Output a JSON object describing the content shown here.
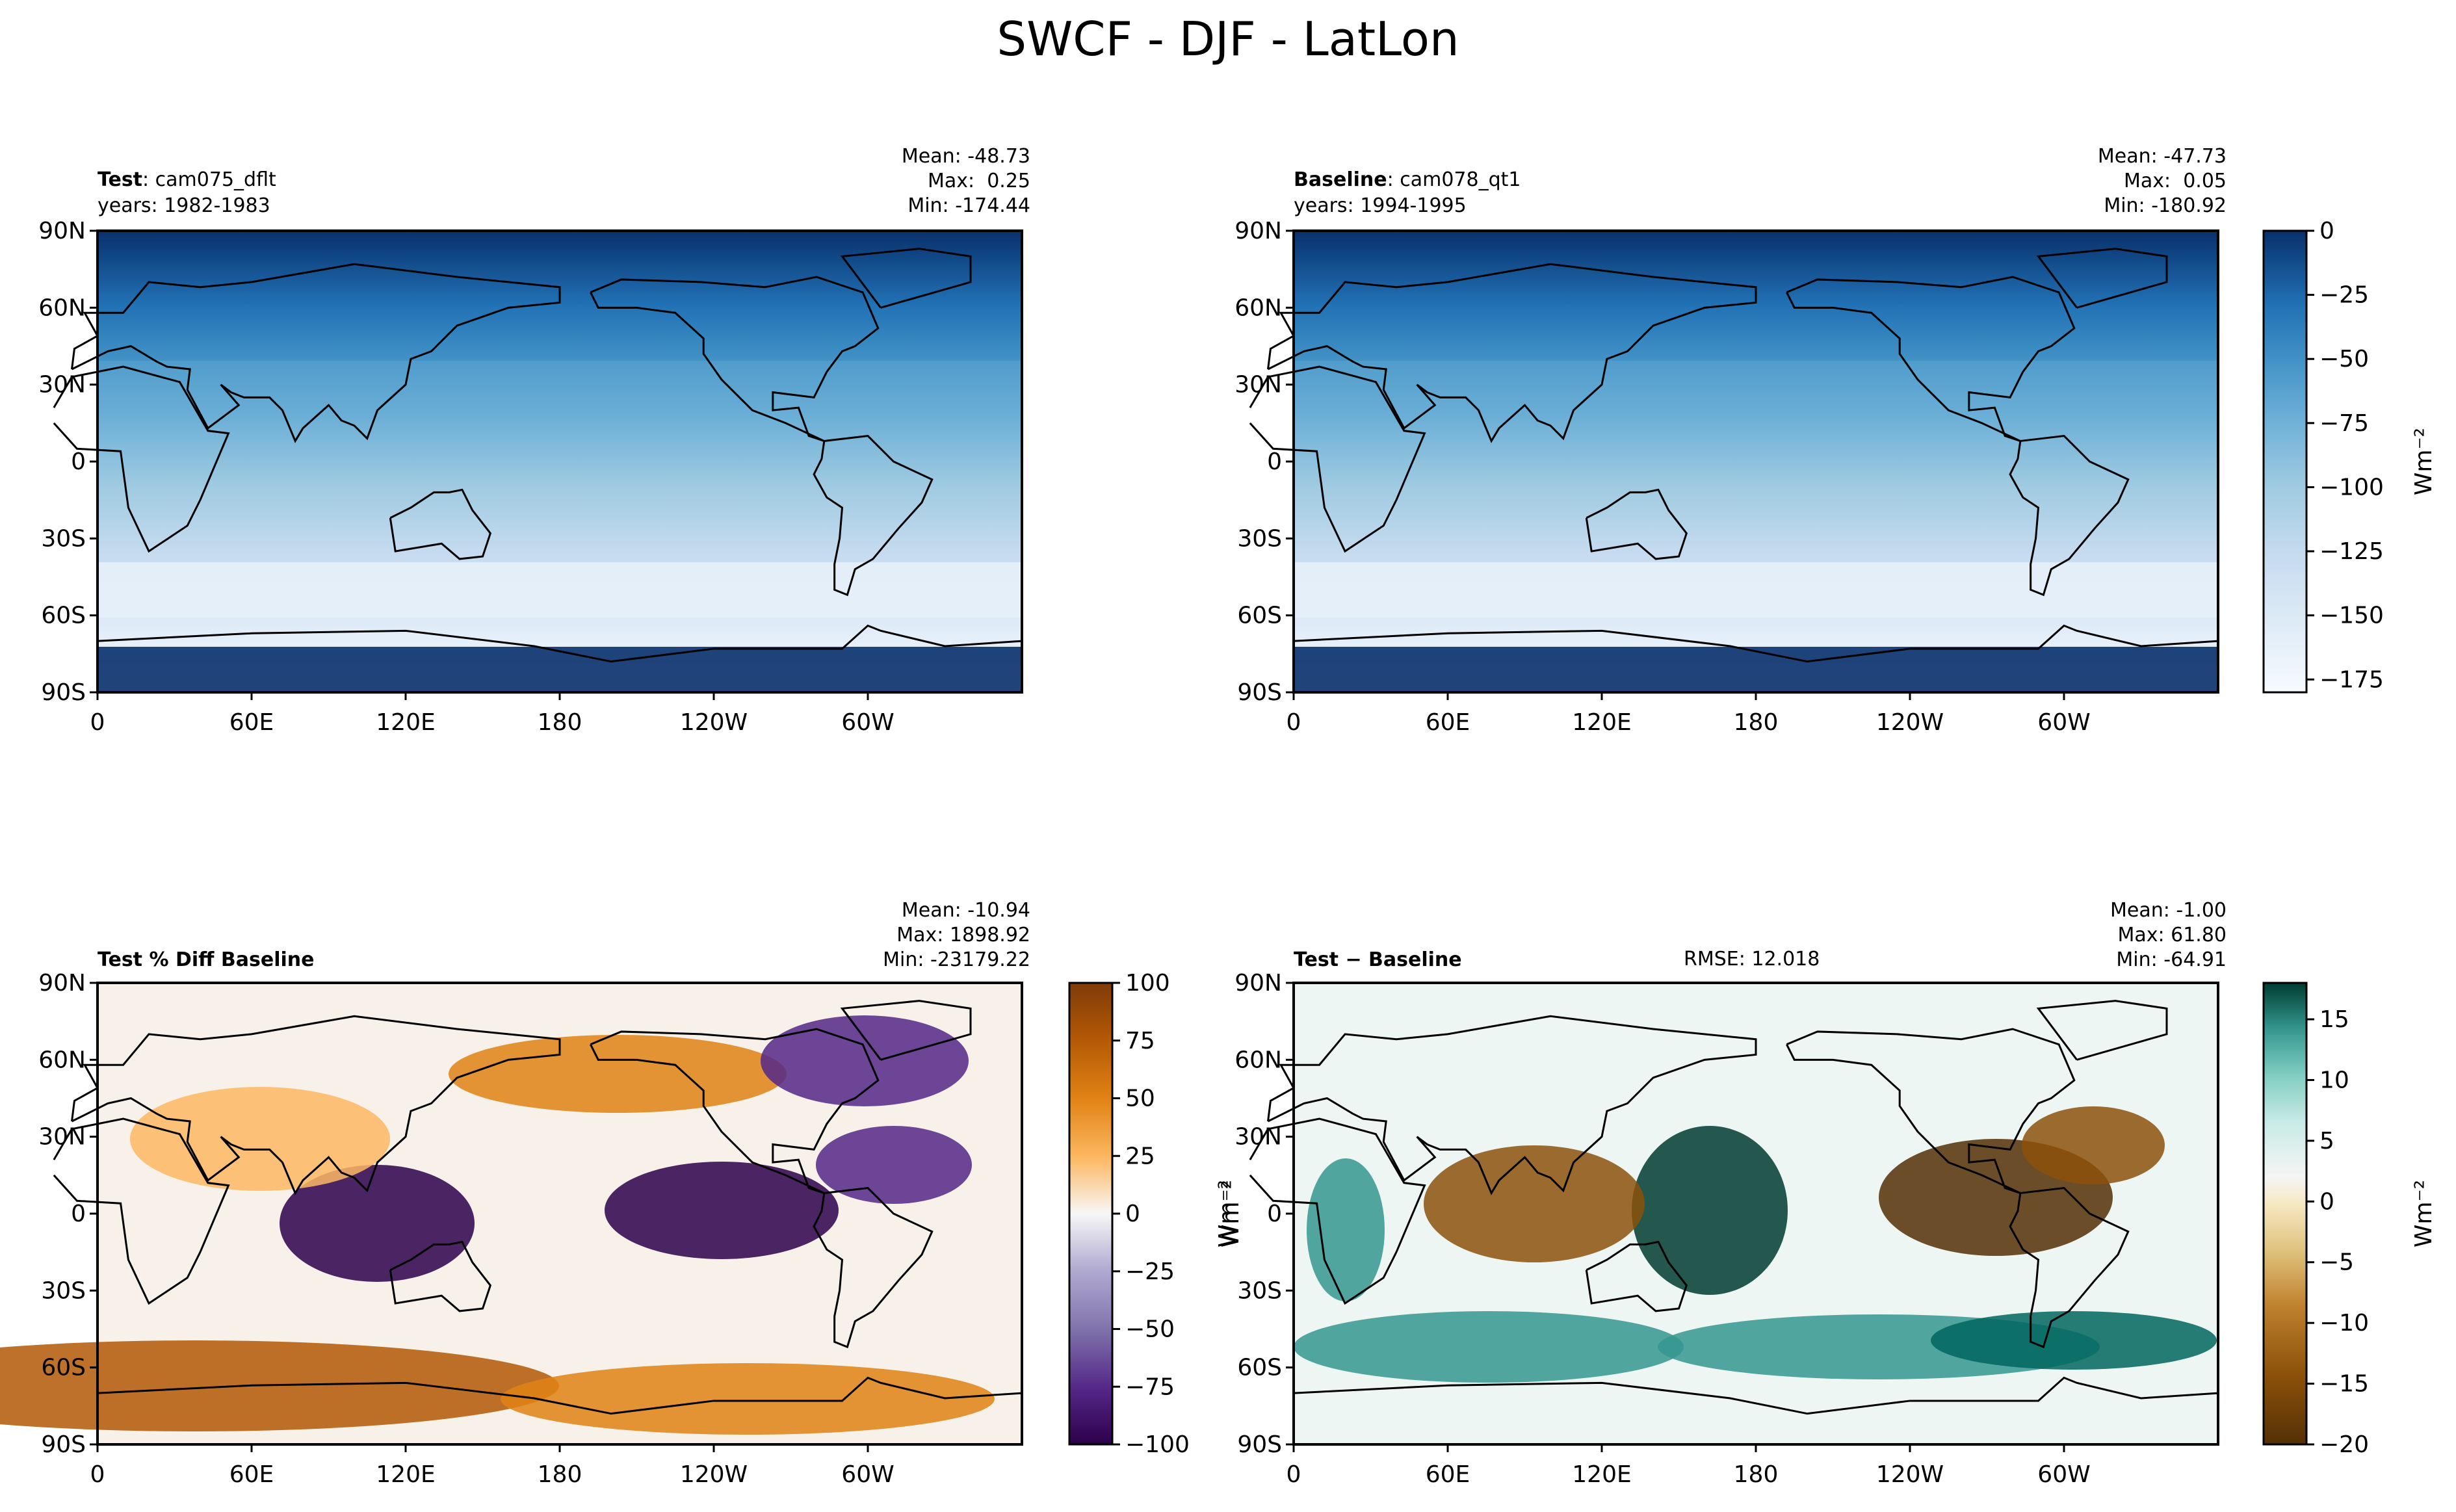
{
  "figure": {
    "title": "SWCF - DJF - LatLon"
  },
  "panels": [
    {
      "key": "test",
      "label_bold": "Test",
      "label_rest": ": cam075_dflt",
      "years": "years: 1982-1983",
      "stats": [
        "Mean: -48.73",
        "Max:  0.25",
        "Min: -174.44"
      ],
      "rmse": ""
    },
    {
      "key": "baseline",
      "label_bold": "Baseline",
      "label_rest": ": cam078_qt1",
      "years": "years: 1994-1995",
      "stats": [
        "Mean: -47.73",
        "Max:  0.05",
        "Min: -180.92"
      ],
      "rmse": ""
    },
    {
      "key": "pctdiff",
      "label_bold": "Test % Diff Baseline",
      "label_rest": "",
      "years": "",
      "stats": [
        "Mean: -10.94",
        "Max: 1898.92",
        "Min: -23179.22"
      ],
      "rmse": ""
    },
    {
      "key": "diff",
      "label_bold": "Test − Baseline",
      "label_rest": "",
      "years": "",
      "stats": [
        "Mean: -1.00",
        "Max: 61.80",
        "Min: -64.91"
      ],
      "rmse": "RMSE: 12.018"
    }
  ],
  "axes": {
    "y_ticks": [
      "90N",
      "60N",
      "30N",
      "0",
      "30S",
      "60S",
      "90S"
    ],
    "x_ticks": [
      "0",
      "60E",
      "120E",
      "180",
      "120W",
      "60W"
    ]
  },
  "colorbars": {
    "abs": {
      "ticks": [
        "0",
        "−25",
        "−50",
        "−75",
        "−100",
        "−125",
        "−150",
        "−175"
      ],
      "range": [
        -180,
        0
      ],
      "label": "Wm⁻²",
      "colormap": "Blues"
    },
    "pct": {
      "ticks": [
        "100",
        "75",
        "50",
        "25",
        "0",
        "−25",
        "−50",
        "−75",
        "−100"
      ],
      "range": [
        -100,
        100
      ],
      "label": "Wm⁻²",
      "colormap": "PuOr"
    },
    "diff": {
      "ticks": [
        "15",
        "10",
        "5",
        "0",
        "−5",
        "−10",
        "−15",
        "−20"
      ],
      "range": [
        -20,
        18
      ],
      "label": "Wm⁻²",
      "colormap": "BrBG"
    }
  },
  "chart_data": [
    {
      "type": "heatmap",
      "title": "Test: cam075_dflt",
      "x_ticks": [
        "0",
        "60E",
        "120E",
        "180",
        "120W",
        "60W"
      ],
      "y_ticks": [
        "90N",
        "60N",
        "30N",
        "0",
        "30S",
        "60S",
        "90S"
      ],
      "value_range": [
        -180,
        0
      ],
      "units": "Wm⁻²",
      "stats": {
        "mean": -48.73,
        "max": 0.25,
        "min": -174.44
      }
    },
    {
      "type": "heatmap",
      "title": "Baseline: cam078_qt1",
      "x_ticks": [
        "0",
        "60E",
        "120E",
        "180",
        "120W",
        "60W"
      ],
      "y_ticks": [
        "90N",
        "60N",
        "30N",
        "0",
        "30S",
        "60S",
        "90S"
      ],
      "value_range": [
        -180,
        0
      ],
      "units": "Wm⁻²",
      "stats": {
        "mean": -47.73,
        "max": 0.05,
        "min": -180.92
      }
    },
    {
      "type": "heatmap",
      "title": "Test % Diff Baseline",
      "x_ticks": [
        "0",
        "60E",
        "120E",
        "180",
        "120W",
        "60W"
      ],
      "y_ticks": [
        "90N",
        "60N",
        "30N",
        "0",
        "30S",
        "60S",
        "90S"
      ],
      "value_range": [
        -100,
        100
      ],
      "stats": {
        "mean": -10.94,
        "max": 1898.92,
        "min": -23179.22
      }
    },
    {
      "type": "heatmap",
      "title": "Test − Baseline",
      "x_ticks": [
        "0",
        "60E",
        "120E",
        "180",
        "120W",
        "60W"
      ],
      "y_ticks": [
        "90N",
        "60N",
        "30N",
        "0",
        "30S",
        "60S",
        "90S"
      ],
      "value_range": [
        -20,
        18
      ],
      "units": "Wm⁻²",
      "stats": {
        "mean": -1.0,
        "max": 61.8,
        "min": -64.91,
        "rmse": 12.018
      }
    }
  ]
}
